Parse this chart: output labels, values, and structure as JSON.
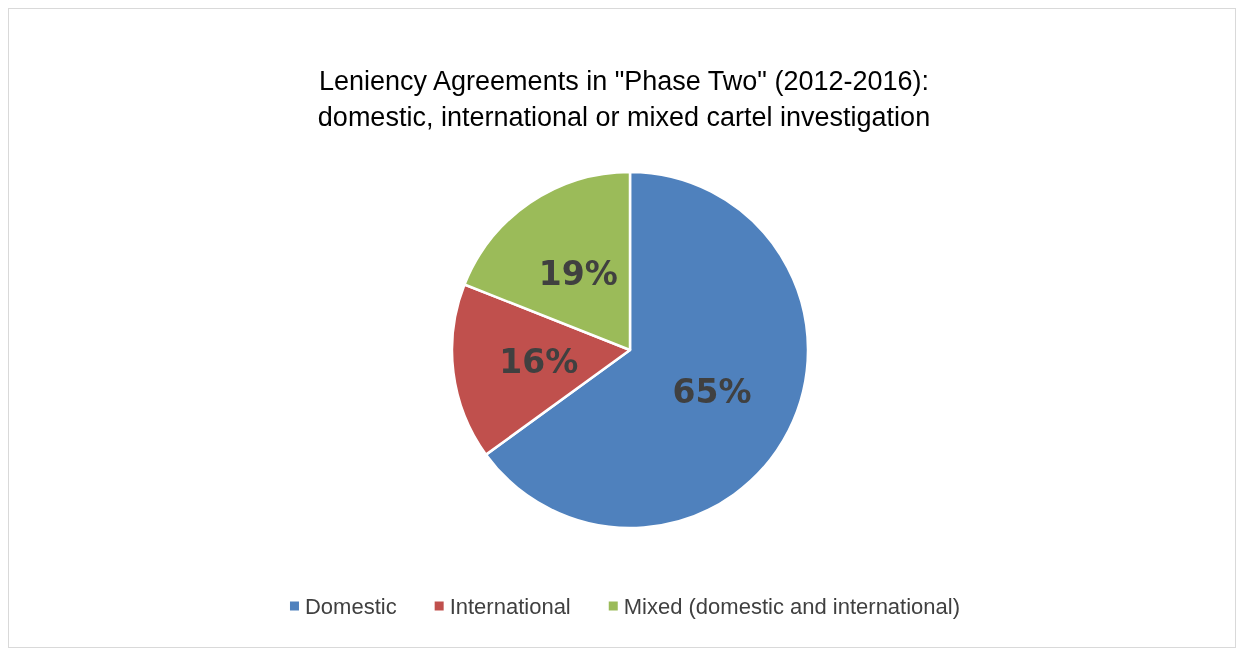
{
  "chart_data": {
    "type": "pie",
    "title": "Leniency Agreements in \"Phase Two\" (2012-2016):\ndomestic, international or mixed cartel investigation",
    "categories": [
      "Domestic",
      "International",
      "Mixed (domestic and international)"
    ],
    "values": [
      65,
      16,
      19
    ],
    "colors": [
      "#4f81bd",
      "#c0504d",
      "#9bbb59"
    ],
    "value_labels": [
      "65%",
      "16%",
      "19%"
    ],
    "legend": "bottom"
  }
}
